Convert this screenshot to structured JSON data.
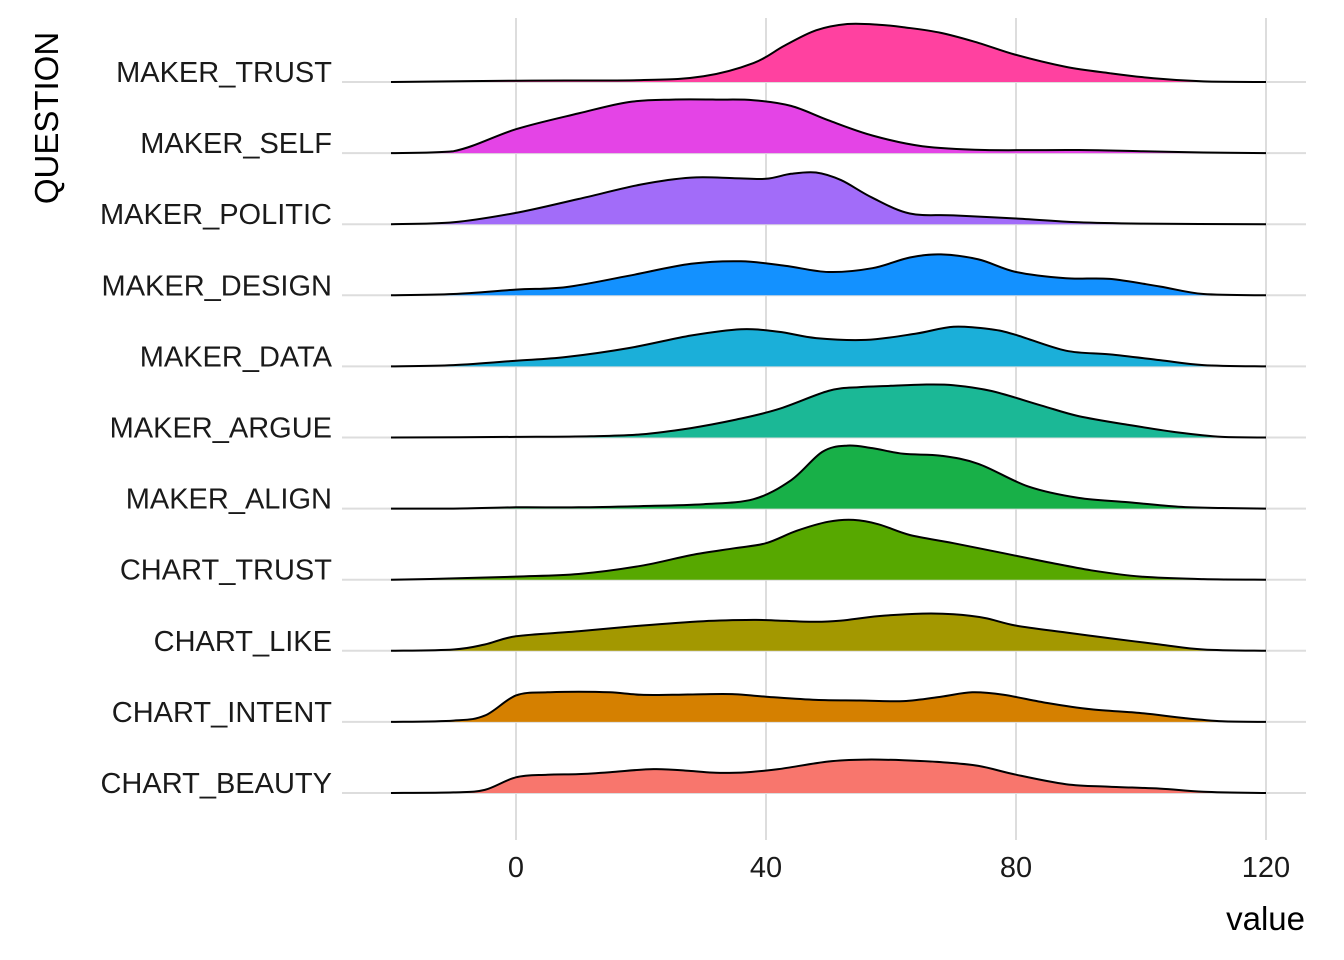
{
  "chart_data": {
    "type": "ridgeline",
    "xlabel": "value",
    "ylabel": "QUESTION",
    "x_ticks": [
      0,
      40,
      80,
      120
    ],
    "xlim": [
      -20,
      120
    ],
    "grid": true,
    "legend": "none",
    "series": [
      {
        "name": "CHART_BEAUTY",
        "color": "#F8766D",
        "points": [
          [
            -20,
            0
          ],
          [
            -10,
            0.01
          ],
          [
            -5,
            0.05
          ],
          [
            0,
            0.25
          ],
          [
            5,
            0.29
          ],
          [
            10,
            0.3
          ],
          [
            15,
            0.33
          ],
          [
            22,
            0.38
          ],
          [
            28,
            0.35
          ],
          [
            32,
            0.32
          ],
          [
            37,
            0.33
          ],
          [
            42,
            0.38
          ],
          [
            50,
            0.5
          ],
          [
            56,
            0.53
          ],
          [
            62,
            0.52
          ],
          [
            68,
            0.49
          ],
          [
            74,
            0.43
          ],
          [
            80,
            0.29
          ],
          [
            88,
            0.14
          ],
          [
            95,
            0.1
          ],
          [
            103,
            0.07
          ],
          [
            110,
            0.02
          ],
          [
            120,
            0
          ]
        ]
      },
      {
        "name": "CHART_INTENT",
        "color": "#D58000",
        "points": [
          [
            -20,
            0
          ],
          [
            -10,
            0.02
          ],
          [
            -5,
            0.1
          ],
          [
            0,
            0.42
          ],
          [
            5,
            0.47
          ],
          [
            10,
            0.48
          ],
          [
            15,
            0.47
          ],
          [
            20,
            0.43
          ],
          [
            25,
            0.43
          ],
          [
            30,
            0.44
          ],
          [
            35,
            0.44
          ],
          [
            40,
            0.4
          ],
          [
            48,
            0.35
          ],
          [
            55,
            0.34
          ],
          [
            62,
            0.33
          ],
          [
            68,
            0.4
          ],
          [
            73,
            0.47
          ],
          [
            78,
            0.43
          ],
          [
            85,
            0.3
          ],
          [
            92,
            0.2
          ],
          [
            100,
            0.14
          ],
          [
            107,
            0.06
          ],
          [
            113,
            0.01
          ],
          [
            120,
            0
          ]
        ]
      },
      {
        "name": "CHART_LIKE",
        "color": "#A39800",
        "points": [
          [
            -20,
            0
          ],
          [
            -10,
            0.02
          ],
          [
            -5,
            0.1
          ],
          [
            0,
            0.23
          ],
          [
            10,
            0.31
          ],
          [
            20,
            0.4
          ],
          [
            30,
            0.47
          ],
          [
            38,
            0.49
          ],
          [
            42,
            0.48
          ],
          [
            48,
            0.46
          ],
          [
            52,
            0.48
          ],
          [
            58,
            0.55
          ],
          [
            65,
            0.59
          ],
          [
            70,
            0.58
          ],
          [
            75,
            0.52
          ],
          [
            80,
            0.4
          ],
          [
            88,
            0.29
          ],
          [
            95,
            0.2
          ],
          [
            103,
            0.1
          ],
          [
            110,
            0.02
          ],
          [
            120,
            0
          ]
        ]
      },
      {
        "name": "CHART_TRUST",
        "color": "#57A800",
        "points": [
          [
            -20,
            0
          ],
          [
            -10,
            0.02
          ],
          [
            0,
            0.05
          ],
          [
            10,
            0.09
          ],
          [
            20,
            0.22
          ],
          [
            28,
            0.39
          ],
          [
            35,
            0.5
          ],
          [
            40,
            0.58
          ],
          [
            45,
            0.78
          ],
          [
            50,
            0.92
          ],
          [
            54,
            0.95
          ],
          [
            58,
            0.88
          ],
          [
            63,
            0.71
          ],
          [
            70,
            0.58
          ],
          [
            78,
            0.42
          ],
          [
            85,
            0.28
          ],
          [
            92,
            0.15
          ],
          [
            100,
            0.05
          ],
          [
            110,
            0.01
          ],
          [
            120,
            0
          ]
        ]
      },
      {
        "name": "MAKER_ALIGN",
        "color": "#18B048",
        "points": [
          [
            -20,
            0
          ],
          [
            -10,
            0
          ],
          [
            0,
            0.02
          ],
          [
            10,
            0.02
          ],
          [
            20,
            0.04
          ],
          [
            30,
            0.07
          ],
          [
            38,
            0.15
          ],
          [
            44,
            0.45
          ],
          [
            49,
            0.9
          ],
          [
            53,
            1.0
          ],
          [
            57,
            0.96
          ],
          [
            62,
            0.87
          ],
          [
            68,
            0.84
          ],
          [
            74,
            0.71
          ],
          [
            82,
            0.35
          ],
          [
            90,
            0.17
          ],
          [
            98,
            0.1
          ],
          [
            106,
            0.03
          ],
          [
            113,
            0.01
          ],
          [
            120,
            0
          ]
        ]
      },
      {
        "name": "MAKER_ARGUE",
        "color": "#1BB896",
        "points": [
          [
            -20,
            0
          ],
          [
            0,
            0.01
          ],
          [
            12,
            0.02
          ],
          [
            20,
            0.05
          ],
          [
            28,
            0.15
          ],
          [
            35,
            0.28
          ],
          [
            42,
            0.45
          ],
          [
            50,
            0.74
          ],
          [
            55,
            0.8
          ],
          [
            60,
            0.82
          ],
          [
            65,
            0.84
          ],
          [
            70,
            0.83
          ],
          [
            76,
            0.74
          ],
          [
            84,
            0.51
          ],
          [
            90,
            0.34
          ],
          [
            98,
            0.2
          ],
          [
            106,
            0.08
          ],
          [
            113,
            0.01
          ],
          [
            120,
            0
          ]
        ]
      },
      {
        "name": "MAKER_DATA",
        "color": "#1BAFD9",
        "points": [
          [
            -20,
            0
          ],
          [
            -10,
            0.02
          ],
          [
            0,
            0.09
          ],
          [
            8,
            0.15
          ],
          [
            18,
            0.29
          ],
          [
            28,
            0.49
          ],
          [
            36,
            0.59
          ],
          [
            42,
            0.55
          ],
          [
            48,
            0.45
          ],
          [
            56,
            0.42
          ],
          [
            64,
            0.52
          ],
          [
            70,
            0.63
          ],
          [
            76,
            0.59
          ],
          [
            80,
            0.5
          ],
          [
            88,
            0.25
          ],
          [
            95,
            0.19
          ],
          [
            103,
            0.1
          ],
          [
            110,
            0.02
          ],
          [
            120,
            0
          ]
        ]
      },
      {
        "name": "MAKER_DESIGN",
        "color": "#1391FF",
        "points": [
          [
            -20,
            0
          ],
          [
            -10,
            0.02
          ],
          [
            0,
            0.09
          ],
          [
            8,
            0.13
          ],
          [
            18,
            0.31
          ],
          [
            28,
            0.5
          ],
          [
            36,
            0.54
          ],
          [
            43,
            0.47
          ],
          [
            50,
            0.37
          ],
          [
            57,
            0.43
          ],
          [
            63,
            0.6
          ],
          [
            68,
            0.65
          ],
          [
            74,
            0.57
          ],
          [
            80,
            0.37
          ],
          [
            88,
            0.27
          ],
          [
            95,
            0.26
          ],
          [
            103,
            0.14
          ],
          [
            110,
            0.02
          ],
          [
            120,
            0
          ]
        ]
      },
      {
        "name": "MAKER_POLITIC",
        "color": "#A26CF9",
        "points": [
          [
            -20,
            0
          ],
          [
            -10,
            0.03
          ],
          [
            0,
            0.18
          ],
          [
            10,
            0.4
          ],
          [
            20,
            0.63
          ],
          [
            28,
            0.74
          ],
          [
            35,
            0.73
          ],
          [
            40,
            0.72
          ],
          [
            44,
            0.8
          ],
          [
            48,
            0.82
          ],
          [
            52,
            0.7
          ],
          [
            57,
            0.42
          ],
          [
            63,
            0.17
          ],
          [
            70,
            0.14
          ],
          [
            80,
            0.09
          ],
          [
            90,
            0.03
          ],
          [
            100,
            0.01
          ],
          [
            120,
            0
          ]
        ]
      },
      {
        "name": "MAKER_SELF",
        "color": "#E444E6",
        "points": [
          [
            -20,
            0
          ],
          [
            -10,
            0.03
          ],
          [
            0,
            0.38
          ],
          [
            10,
            0.63
          ],
          [
            18,
            0.81
          ],
          [
            25,
            0.85
          ],
          [
            32,
            0.85
          ],
          [
            38,
            0.84
          ],
          [
            44,
            0.75
          ],
          [
            50,
            0.52
          ],
          [
            57,
            0.28
          ],
          [
            65,
            0.11
          ],
          [
            75,
            0.05
          ],
          [
            90,
            0.05
          ],
          [
            100,
            0.03
          ],
          [
            110,
            0.01
          ],
          [
            120,
            0
          ]
        ]
      },
      {
        "name": "MAKER_TRUST",
        "color": "#FF41A0",
        "points": [
          [
            -20,
            0
          ],
          [
            0,
            0.02
          ],
          [
            20,
            0.03
          ],
          [
            30,
            0.09
          ],
          [
            38,
            0.3
          ],
          [
            43,
            0.58
          ],
          [
            48,
            0.82
          ],
          [
            53,
            0.92
          ],
          [
            58,
            0.91
          ],
          [
            62,
            0.87
          ],
          [
            68,
            0.78
          ],
          [
            74,
            0.62
          ],
          [
            80,
            0.43
          ],
          [
            88,
            0.24
          ],
          [
            95,
            0.14
          ],
          [
            102,
            0.06
          ],
          [
            110,
            0.01
          ],
          [
            120,
            0
          ]
        ]
      }
    ]
  }
}
